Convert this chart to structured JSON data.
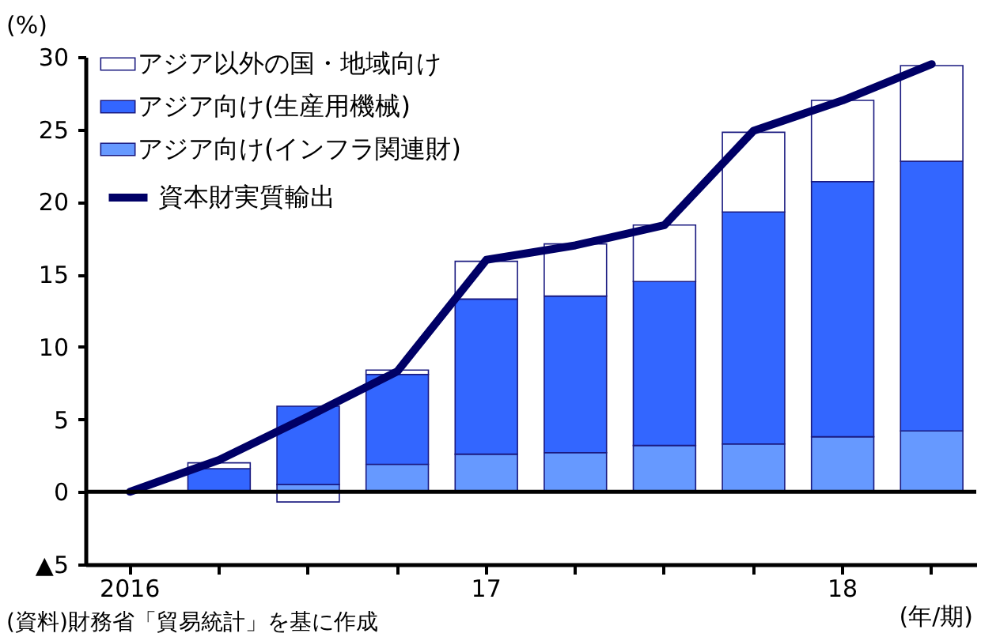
{
  "chart_data": {
    "type": "bar",
    "stacked": true,
    "categories": [
      "2016",
      null,
      null,
      null,
      "17",
      null,
      null,
      null,
      "18",
      null
    ],
    "ylabel": "(%)",
    "xlabel": "(年/期)",
    "annotations": [
      "(資料)財務省「貿易統計」を基に作成"
    ],
    "ylim": [
      -5,
      30
    ],
    "yticks": [
      {
        "value": -5,
        "label": "▲5"
      },
      0,
      5,
      10,
      15,
      20,
      25,
      30
    ],
    "legend": "top left",
    "ref_lines": [
      {
        "axis": "y",
        "value": 0,
        "color": "#000000"
      }
    ],
    "series": [
      {
        "name": "アジア向け(インフラ関連財)",
        "color": "#6699ff",
        "values": [
          null,
          null,
          0.5,
          1.9,
          2.6,
          2.7,
          3.2,
          3.3,
          3.8,
          4.2
        ]
      },
      {
        "name": "アジア向け(生産用機械)",
        "color": "#3366ff",
        "values": [
          null,
          1.6,
          5.4,
          6.2,
          10.7,
          10.8,
          11.3,
          16.0,
          17.6,
          18.6
        ]
      },
      {
        "name": "アジア以外の国・地域向け",
        "color": "#ffffff",
        "values": [
          null,
          0.4,
          -0.7,
          0.3,
          2.6,
          3.6,
          3.9,
          5.5,
          5.6,
          6.6
        ]
      },
      {
        "name": "資本財実質輸出",
        "type": "line",
        "color": "#000066",
        "values": [
          0,
          2.2,
          5.2,
          8.3,
          16.0,
          17.0,
          18.4,
          24.9,
          27.0,
          29.5
        ]
      }
    ]
  }
}
